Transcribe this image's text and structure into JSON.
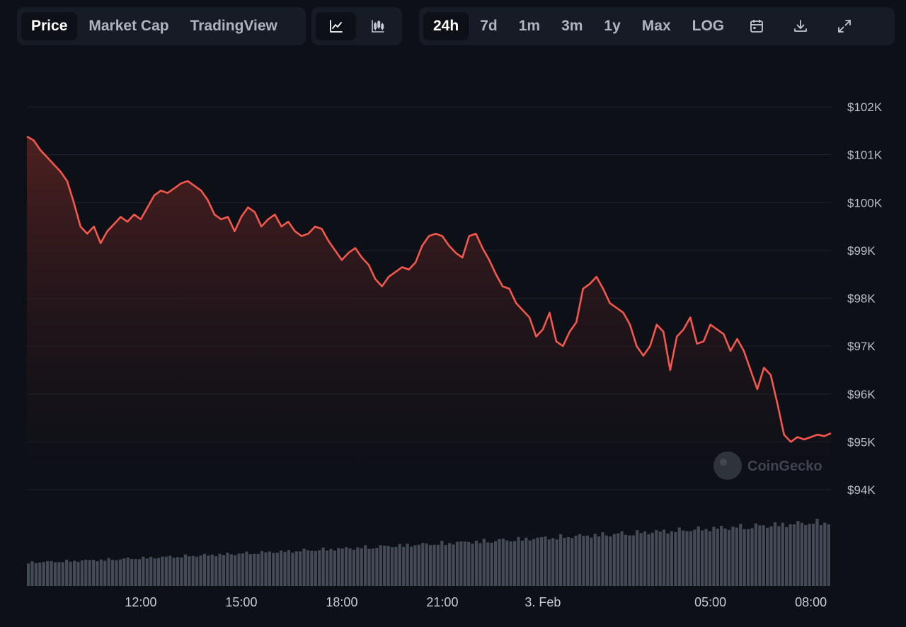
{
  "toolbar": {
    "view_tabs": [
      {
        "label": "Price",
        "active": true
      },
      {
        "label": "Market Cap",
        "active": false
      },
      {
        "label": "TradingView",
        "active": false
      }
    ],
    "chart_type_icons": [
      "line-chart-icon",
      "candlestick-chart-icon"
    ],
    "ranges": [
      {
        "label": "24h",
        "active": true
      },
      {
        "label": "7d",
        "active": false
      },
      {
        "label": "1m",
        "active": false
      },
      {
        "label": "3m",
        "active": false
      },
      {
        "label": "1y",
        "active": false
      },
      {
        "label": "Max",
        "active": false
      },
      {
        "label": "LOG",
        "active": false
      }
    ],
    "action_icons": [
      "calendar-icon",
      "download-icon",
      "fullscreen-icon"
    ]
  },
  "watermark": {
    "text": "CoinGecko"
  },
  "colors": {
    "line": "#f4574c",
    "area_top": "#5a2322",
    "grid": "#1e2433",
    "volume": "#454b56",
    "background": "#0d1017"
  },
  "chart_data": {
    "type": "area",
    "y_unit": "USD",
    "ylim": [
      94000,
      102000
    ],
    "y_ticks": [
      102000,
      101000,
      100000,
      99000,
      98000,
      97000,
      96000,
      95000,
      94000
    ],
    "y_tick_labels": [
      "$102K",
      "$101K",
      "$100K",
      "$99K",
      "$98K",
      "$97K",
      "$96K",
      "$95K",
      "$94K"
    ],
    "x_ticks": [
      {
        "label": "12:00",
        "x": 3.0
      },
      {
        "label": "15:00",
        "x": 6.0
      },
      {
        "label": "18:00",
        "x": 9.0
      },
      {
        "label": "21:00",
        "x": 12.0
      },
      {
        "label": "3. Feb",
        "x": 15.0
      },
      {
        "label": "05:00",
        "x": 20.0
      },
      {
        "label": "08:00",
        "x": 23.0
      }
    ],
    "x_range": [
      -0.4,
      23.6
    ],
    "price_series": [
      [
        -0.4,
        101380
      ],
      [
        -0.2,
        101300
      ],
      [
        0.0,
        101100
      ],
      [
        0.2,
        100950
      ],
      [
        0.4,
        100800
      ],
      [
        0.6,
        100650
      ],
      [
        0.8,
        100450
      ],
      [
        1.0,
        100000
      ],
      [
        1.2,
        99500
      ],
      [
        1.4,
        99350
      ],
      [
        1.6,
        99500
      ],
      [
        1.8,
        99150
      ],
      [
        2.0,
        99400
      ],
      [
        2.2,
        99550
      ],
      [
        2.4,
        99700
      ],
      [
        2.6,
        99600
      ],
      [
        2.8,
        99750
      ],
      [
        3.0,
        99650
      ],
      [
        3.2,
        99900
      ],
      [
        3.4,
        100150
      ],
      [
        3.6,
        100250
      ],
      [
        3.8,
        100200
      ],
      [
        4.0,
        100300
      ],
      [
        4.2,
        100400
      ],
      [
        4.4,
        100450
      ],
      [
        4.6,
        100350
      ],
      [
        4.8,
        100250
      ],
      [
        5.0,
        100050
      ],
      [
        5.2,
        99750
      ],
      [
        5.4,
        99650
      ],
      [
        5.6,
        99700
      ],
      [
        5.8,
        99400
      ],
      [
        6.0,
        99700
      ],
      [
        6.2,
        99900
      ],
      [
        6.4,
        99800
      ],
      [
        6.6,
        99500
      ],
      [
        6.8,
        99650
      ],
      [
        7.0,
        99750
      ],
      [
        7.2,
        99500
      ],
      [
        7.4,
        99600
      ],
      [
        7.6,
        99400
      ],
      [
        7.8,
        99300
      ],
      [
        8.0,
        99350
      ],
      [
        8.2,
        99500
      ],
      [
        8.4,
        99450
      ],
      [
        8.6,
        99200
      ],
      [
        8.8,
        99000
      ],
      [
        9.0,
        98800
      ],
      [
        9.2,
        98950
      ],
      [
        9.4,
        99050
      ],
      [
        9.6,
        98850
      ],
      [
        9.8,
        98700
      ],
      [
        10.0,
        98400
      ],
      [
        10.2,
        98250
      ],
      [
        10.4,
        98450
      ],
      [
        10.6,
        98550
      ],
      [
        10.8,
        98650
      ],
      [
        11.0,
        98600
      ],
      [
        11.2,
        98750
      ],
      [
        11.4,
        99100
      ],
      [
        11.6,
        99300
      ],
      [
        11.8,
        99350
      ],
      [
        12.0,
        99300
      ],
      [
        12.2,
        99100
      ],
      [
        12.4,
        98950
      ],
      [
        12.6,
        98850
      ],
      [
        12.8,
        99300
      ],
      [
        13.0,
        99350
      ],
      [
        13.2,
        99050
      ],
      [
        13.4,
        98800
      ],
      [
        13.6,
        98500
      ],
      [
        13.8,
        98250
      ],
      [
        14.0,
        98200
      ],
      [
        14.2,
        97900
      ],
      [
        14.4,
        97750
      ],
      [
        14.6,
        97600
      ],
      [
        14.8,
        97200
      ],
      [
        15.0,
        97350
      ],
      [
        15.2,
        97700
      ],
      [
        15.4,
        97100
      ],
      [
        15.6,
        97000
      ],
      [
        15.8,
        97300
      ],
      [
        16.0,
        97500
      ],
      [
        16.2,
        98200
      ],
      [
        16.4,
        98300
      ],
      [
        16.6,
        98450
      ],
      [
        16.8,
        98200
      ],
      [
        17.0,
        97900
      ],
      [
        17.2,
        97800
      ],
      [
        17.4,
        97700
      ],
      [
        17.6,
        97450
      ],
      [
        17.8,
        97000
      ],
      [
        18.0,
        96800
      ],
      [
        18.2,
        97000
      ],
      [
        18.4,
        97450
      ],
      [
        18.6,
        97300
      ],
      [
        18.8,
        96500
      ],
      [
        19.0,
        97200
      ],
      [
        19.2,
        97350
      ],
      [
        19.4,
        97600
      ],
      [
        19.6,
        97050
      ],
      [
        19.8,
        97100
      ],
      [
        20.0,
        97450
      ],
      [
        20.2,
        97350
      ],
      [
        20.4,
        97250
      ],
      [
        20.6,
        96900
      ],
      [
        20.8,
        97150
      ],
      [
        21.0,
        96900
      ],
      [
        21.2,
        96500
      ],
      [
        21.4,
        96100
      ],
      [
        21.6,
        96550
      ],
      [
        21.8,
        96400
      ],
      [
        22.0,
        95800
      ],
      [
        22.2,
        95150
      ],
      [
        22.4,
        95000
      ],
      [
        22.6,
        95100
      ],
      [
        22.8,
        95050
      ],
      [
        23.0,
        95100
      ],
      [
        23.2,
        95150
      ],
      [
        23.4,
        95120
      ],
      [
        23.6,
        95180
      ]
    ],
    "volume_series": {
      "description": "Relative trading volume bars beneath the price area, rising over the 24h window",
      "start_level": 0.36,
      "end_level": 0.98,
      "bar_count": 210
    }
  }
}
